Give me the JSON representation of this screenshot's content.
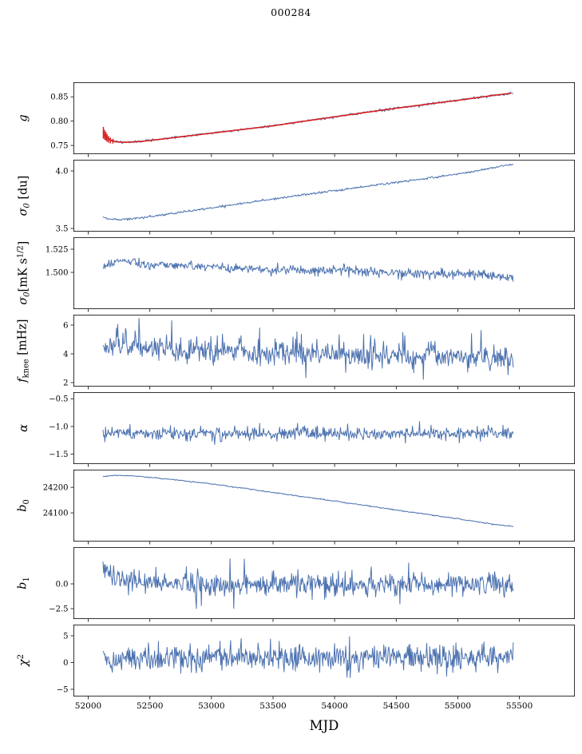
{
  "chart_data": {
    "type": "line",
    "title": "000284",
    "xlabel": "MJD",
    "xlim": [
      51880,
      55950
    ],
    "xticks": [
      52000,
      52500,
      53000,
      53500,
      54000,
      54500,
      55000,
      55500
    ],
    "xtick_labels": [
      "52000",
      "52500",
      "53000",
      "53500",
      "54000",
      "54500",
      "55000",
      "55500"
    ],
    "grid": false,
    "legend": "none",
    "panels": [
      {
        "name": "g",
        "ylabel": [
          {
            "t": "g",
            "i": 1
          }
        ],
        "ylim": [
          0.732,
          0.88
        ],
        "yticks": [
          0.75,
          0.8,
          0.85
        ],
        "ytick_labels": [
          "0.75",
          "0.80",
          "0.85"
        ],
        "series": [
          {
            "name": "gain-data",
            "color": "#4c72b0",
            "width": 1,
            "noise": {
              "amp": 0.0012,
              "seed": 11,
              "n": 620
            },
            "points": [
              [
                52120,
                0.777
              ],
              [
                52150,
                0.7655
              ],
              [
                52200,
                0.7588
              ],
              [
                52280,
                0.7565
              ],
              [
                52400,
                0.7578
              ],
              [
                52550,
                0.7618
              ],
              [
                52750,
                0.7678
              ],
              [
                53000,
                0.7752
              ],
              [
                53250,
                0.7828
              ],
              [
                53500,
                0.7905
              ],
              [
                53750,
                0.7998
              ],
              [
                54000,
                0.8088
              ],
              [
                54250,
                0.8178
              ],
              [
                54500,
                0.8265
              ],
              [
                54750,
                0.8348
              ],
              [
                55000,
                0.8428
              ],
              [
                55200,
                0.8498
              ],
              [
                55350,
                0.8548
              ],
              [
                55450,
                0.8575
              ]
            ]
          },
          {
            "name": "gain-fit",
            "color": "#d62020",
            "width": 1.6,
            "points": [
              [
                52120,
                0.777
              ],
              [
                52150,
                0.7655
              ],
              [
                52200,
                0.7588
              ],
              [
                52280,
                0.7565
              ],
              [
                52400,
                0.7578
              ],
              [
                52550,
                0.7618
              ],
              [
                52750,
                0.7678
              ],
              [
                53000,
                0.7752
              ],
              [
                53250,
                0.7828
              ],
              [
                53500,
                0.7905
              ],
              [
                53750,
                0.7998
              ],
              [
                54000,
                0.8088
              ],
              [
                54250,
                0.8178
              ],
              [
                54500,
                0.8265
              ],
              [
                54750,
                0.8348
              ],
              [
                55000,
                0.8428
              ],
              [
                55200,
                0.8498
              ],
              [
                55350,
                0.8548
              ],
              [
                55430,
                0.857
              ]
            ]
          },
          {
            "name": "gain-errorbars",
            "type": "errorbar",
            "color": "#d62020",
            "points": [
              [
                52123,
                0.776,
                0.012
              ],
              [
                52133,
                0.772,
                0.01
              ],
              [
                52143,
                0.769,
                0.009
              ],
              [
                52153,
                0.7655,
                0.008
              ],
              [
                52165,
                0.7625,
                0.007
              ],
              [
                52180,
                0.76,
                0.006
              ],
              [
                52200,
                0.7588,
                0.005
              ]
            ]
          }
        ]
      },
      {
        "name": "sigma0-du",
        "ylabel": [
          {
            "t": "σ",
            "i": 1
          },
          {
            "t": "0",
            "sub": 1,
            "i": 1
          },
          {
            "t": " [du]"
          }
        ],
        "ylim": [
          3.472,
          4.097
        ],
        "yticks": [
          3.5,
          4.0
        ],
        "ytick_labels": [
          "3.5",
          "4.0"
        ],
        "series": [
          {
            "name": "sigma0-du",
            "color": "#4c72b0",
            "width": 1,
            "noise": {
              "amp": 0.0045,
              "seed": 7,
              "n": 620
            },
            "points": [
              [
                52120,
                3.602
              ],
              [
                52170,
                3.58
              ],
              [
                52260,
                3.575
              ],
              [
                52400,
                3.588
              ],
              [
                52600,
                3.618
              ],
              [
                52850,
                3.655
              ],
              [
                53100,
                3.695
              ],
              [
                53400,
                3.74
              ],
              [
                53700,
                3.785
              ],
              [
                54000,
                3.828
              ],
              [
                54300,
                3.872
              ],
              [
                54600,
                3.915
              ],
              [
                54900,
                3.958
              ],
              [
                55100,
                3.99
              ],
              [
                55250,
                4.02
              ],
              [
                55380,
                4.048
              ],
              [
                55450,
                4.052
              ]
            ]
          }
        ]
      },
      {
        "name": "sigma0-mK",
        "ylabel": [
          {
            "t": "σ",
            "i": 1
          },
          {
            "t": "0",
            "sub": 1,
            "i": 1
          },
          {
            "t": "[mK s"
          },
          {
            "t": "1/2",
            "sup": 1
          },
          {
            "t": "]"
          }
        ],
        "ylim": [
          1.4603,
          1.5379
        ],
        "yticks": [
          1.5,
          1.525
        ],
        "ytick_labels": [
          "1.500",
          "1.525"
        ],
        "series": [
          {
            "name": "sigma0-mK",
            "color": "#4c72b0",
            "width": 1,
            "noise": {
              "amp": 0.0026,
              "seed": 21,
              "n": 640
            },
            "points": [
              [
                52120,
                1.5065
              ],
              [
                52220,
                1.511
              ],
              [
                52320,
                1.5125
              ],
              [
                52450,
                1.5085
              ],
              [
                52650,
                1.508
              ],
              [
                52900,
                1.5068
              ],
              [
                53150,
                1.5052
              ],
              [
                53450,
                1.5028
              ],
              [
                53750,
                1.502
              ],
              [
                54050,
                1.5028
              ],
              [
                54350,
                1.5
              ],
              [
                54650,
                1.499
              ],
              [
                54950,
                1.4988
              ],
              [
                55200,
                1.4975
              ],
              [
                55450,
                1.4945
              ]
            ]
          }
        ]
      },
      {
        "name": "fknee",
        "ylabel": [
          {
            "t": "f",
            "i": 1
          },
          {
            "t": "knee",
            "sub": 1
          },
          {
            "t": " [mHz]"
          }
        ],
        "ylim": [
          1.72,
          6.72
        ],
        "yticks": [
          2,
          4,
          6
        ],
        "ytick_labels": [
          "2",
          "4",
          "6"
        ],
        "series": [
          {
            "name": "fknee",
            "color": "#4c72b0",
            "width": 1,
            "noise": {
              "amp": 0.4,
              "seed": 33,
              "n": 640,
              "spike_prob": 0.05,
              "spike_amp": 1.1,
              "pos_frac": 0.8
            },
            "points": [
              [
                52120,
                4.62
              ],
              [
                52350,
                4.45
              ],
              [
                52600,
                4.35
              ],
              [
                52900,
                4.22
              ],
              [
                53200,
                4.1
              ],
              [
                53500,
                4.02
              ],
              [
                53800,
                3.95
              ],
              [
                54100,
                3.9
              ],
              [
                54400,
                3.85
              ],
              [
                54700,
                3.82
              ],
              [
                55000,
                3.78
              ],
              [
                55450,
                3.72
              ]
            ]
          }
        ]
      },
      {
        "name": "alpha",
        "ylabel": [
          {
            "t": "α",
            "i": 1
          }
        ],
        "ylim": [
          -1.68,
          -0.38
        ],
        "yticks": [
          -1.5,
          -1.0,
          -0.5
        ],
        "ytick_labels": [
          "−1.5",
          "−1.0",
          "−0.5"
        ],
        "series": [
          {
            "name": "alpha",
            "color": "#4c72b0",
            "width": 1,
            "noise": {
              "amp": 0.055,
              "seed": 44,
              "n": 640,
              "spike_prob": 0.02,
              "spike_amp": 0.12,
              "pos_frac": 0.5
            },
            "points": [
              [
                52120,
                -1.115
              ],
              [
                52800,
                -1.125
              ],
              [
                53600,
                -1.118
              ],
              [
                54400,
                -1.128
              ],
              [
                55450,
                -1.122
              ]
            ]
          }
        ]
      },
      {
        "name": "b0",
        "ylabel": [
          {
            "t": "b",
            "i": 1
          },
          {
            "t": "0",
            "sub": 1
          }
        ],
        "ylim": [
          23988,
          24269
        ],
        "yticks": [
          24100,
          24200
        ],
        "ytick_labels": [
          "24100",
          "24200"
        ],
        "series": [
          {
            "name": "b0",
            "color": "#4c72b0",
            "width": 1,
            "noise": {
              "amp": 1.0,
              "seed": 55,
              "n": 620
            },
            "points": [
              [
                52120,
                24242
              ],
              [
                52230,
                24247
              ],
              [
                52380,
                24244
              ],
              [
                52550,
                24237
              ],
              [
                52750,
                24227
              ],
              [
                53000,
                24213
              ],
              [
                53250,
                24197
              ],
              [
                53500,
                24180
              ],
              [
                53750,
                24163
              ],
              [
                54000,
                24146
              ],
              [
                54250,
                24129
              ],
              [
                54500,
                24111
              ],
              [
                54750,
                24094
              ],
              [
                55000,
                24077
              ],
              [
                55200,
                24062
              ],
              [
                55350,
                24052
              ],
              [
                55450,
                24047
              ]
            ]
          }
        ]
      },
      {
        "name": "b1",
        "ylabel": [
          {
            "t": "b",
            "i": 1
          },
          {
            "t": "1",
            "sub": 1
          }
        ],
        "ylim": [
          -3.55,
          3.71
        ],
        "yticks": [
          -2.5,
          0.0
        ],
        "ytick_labels": [
          "−2.5",
          "0.0"
        ],
        "series": [
          {
            "name": "b1",
            "color": "#4c72b0",
            "width": 1,
            "noise": {
              "amp": 0.55,
              "seed": 66,
              "n": 660,
              "spike_prob": 0.025,
              "spike_amp": 1.5,
              "pos_frac": 0.45
            },
            "points": [
              [
                52120,
                1.95
              ],
              [
                52150,
                1.45
              ],
              [
                52200,
                0.85
              ],
              [
                52280,
                0.35
              ],
              [
                52400,
                0.08
              ],
              [
                52600,
                -0.04
              ],
              [
                53500,
                -0.05
              ],
              [
                54500,
                -0.06
              ],
              [
                55450,
                -0.05
              ]
            ]
          }
        ]
      },
      {
        "name": "chi2",
        "ylabel": [
          {
            "t": "χ",
            "i": 1
          },
          {
            "t": "2",
            "sup": 1
          }
        ],
        "ylim": [
          -6.34,
          7.09
        ],
        "yticks": [
          -5,
          0,
          5
        ],
        "ytick_labels": [
          "−5",
          "0",
          "5"
        ],
        "series": [
          {
            "name": "chi2",
            "color": "#4c72b0",
            "width": 1,
            "noise": {
              "amp": 1.25,
              "seed": 77,
              "n": 660,
              "spike_prob": 0.015,
              "spike_amp": 2.0,
              "pos_frac": 0.5
            },
            "points": [
              [
                52120,
                0.9
              ],
              [
                53000,
                0.8
              ],
              [
                54000,
                0.9
              ],
              [
                55450,
                0.9
              ]
            ]
          }
        ]
      }
    ]
  }
}
